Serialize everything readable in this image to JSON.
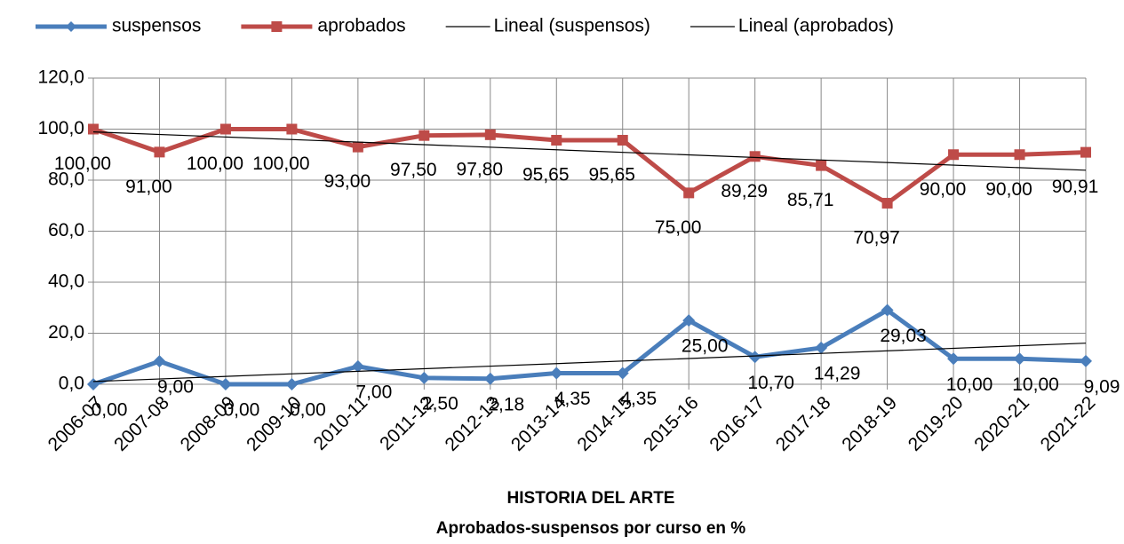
{
  "chart_data": {
    "type": "line",
    "title": "HISTORIA DEL ARTE",
    "subtitle": "Aprobados-suspensos por curso en %",
    "categories": [
      "2006-07",
      "2007-08",
      "2008-09",
      "2009-10",
      "2010-11",
      "2011-12",
      "2012-13",
      "2013-14",
      "2014-15",
      "2015-16",
      "2016-17",
      "2017-18",
      "2018-19",
      "2019-20",
      "2020-21",
      "2021-22"
    ],
    "series": [
      {
        "name": "suspensos",
        "color": "#4a7ebb",
        "values": [
          0,
          9,
          0,
          0,
          7,
          2.5,
          2.18,
          4.35,
          4.35,
          25,
          10.7,
          14.29,
          29.03,
          10,
          10,
          9.09
        ],
        "value_labels": [
          "0,00",
          "9,00",
          "0,00",
          "0,00",
          "7,00",
          "2,50",
          "2,18",
          "4,35",
          "4,35",
          "25,00",
          "10,70",
          "14,29",
          "29,03",
          "10,00",
          "10,00",
          "9,09"
        ]
      },
      {
        "name": "aprobados",
        "color": "#be4b48",
        "values": [
          100,
          91,
          100,
          100,
          93,
          97.5,
          97.8,
          95.65,
          95.65,
          75,
          89.29,
          85.71,
          70.97,
          90,
          90,
          90.91
        ],
        "value_labels": [
          "100,00",
          "91,00",
          "100,00",
          "100,00",
          "93,00",
          "97,50",
          "97,80",
          "95,65",
          "95,65",
          "75,00",
          "89,29",
          "85,71",
          "70,97",
          "90,00",
          "90,00",
          "90,91"
        ]
      }
    ],
    "trendlines": [
      {
        "name": "Lineal (suspensos)",
        "color": "#000000",
        "series": 0
      },
      {
        "name": "Lineal (aprobados)",
        "color": "#000000",
        "series": 1
      }
    ],
    "ylim": [
      0,
      120
    ],
    "yticks": [
      {
        "value": 0,
        "label": "0,0"
      },
      {
        "value": 20,
        "label": "20,0"
      },
      {
        "value": 40,
        "label": "40,0"
      },
      {
        "value": 60,
        "label": "60,0"
      },
      {
        "value": 80,
        "label": "80,0"
      },
      {
        "value": 100,
        "label": "100,0"
      },
      {
        "value": 120,
        "label": "120,0"
      }
    ],
    "grid": true
  }
}
